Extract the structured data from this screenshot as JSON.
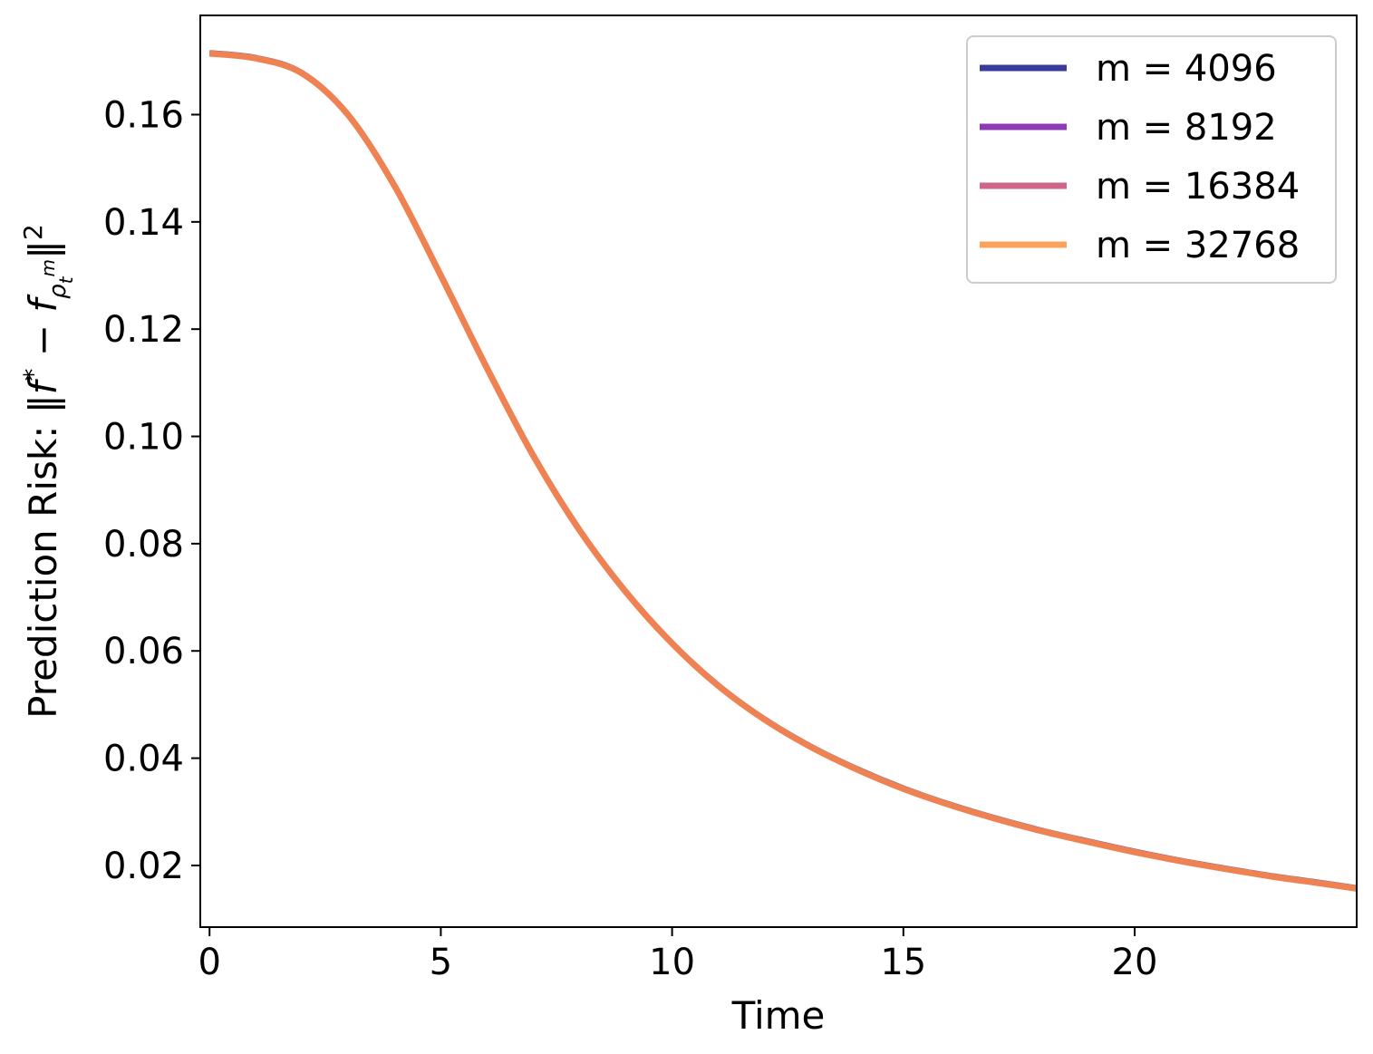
{
  "chart_data": {
    "type": "line",
    "title": "",
    "xlabel": "Time",
    "ylabel_text": "Prediction Risk: ‖f",
    "ylabel_full": "Prediction Risk: ‖f* − f_{ρ̂_t^m}‖²",
    "ylabel_parts": {
      "prefix": "Prediction Risk: ‖",
      "f": "f",
      "star": "*",
      "minus": " − ",
      "f2": "f",
      "sub_rho": "ρ",
      "sub_hat": "^",
      "sub_m": "m",
      "sub_t": "t",
      "bars": "‖",
      "sq": "2"
    },
    "xlim": [
      -0.2,
      24.8
    ],
    "ylim": [
      0.0085,
      0.1785
    ],
    "xticks": [
      0,
      5,
      10,
      15,
      20
    ],
    "xtick_labels": [
      "0",
      "5",
      "10",
      "15",
      "20"
    ],
    "yticks": [
      0.02,
      0.04,
      0.06,
      0.08,
      0.1,
      0.12,
      0.14,
      0.16
    ],
    "ytick_labels": [
      "0.02",
      "0.04",
      "0.06",
      "0.08",
      "0.10",
      "0.12",
      "0.14",
      "0.16"
    ],
    "grid": false,
    "legend_position": "top-right",
    "x": [
      0,
      1,
      2,
      3,
      4,
      5,
      6,
      7,
      8,
      9,
      10,
      11,
      12,
      13,
      14,
      15,
      16,
      17,
      18,
      19,
      20,
      21,
      22,
      23,
      24,
      24.8
    ],
    "series": [
      {
        "name": "m = 4096",
        "color": "#3a3a9e",
        "values": [
          0.1717,
          0.1708,
          0.168,
          0.1602,
          0.147,
          0.1303,
          0.113,
          0.0967,
          0.0828,
          0.0713,
          0.0617,
          0.0538,
          0.0475,
          0.0424,
          0.0382,
          0.0346,
          0.0316,
          0.029,
          0.0267,
          0.0247,
          0.0228,
          0.0211,
          0.0196,
          0.0182,
          0.017,
          0.016
        ]
      },
      {
        "name": "m = 8192",
        "color": "#8d3ab5",
        "values": [
          0.1716,
          0.1707,
          0.1679,
          0.1601,
          0.1469,
          0.1302,
          0.1129,
          0.0966,
          0.0827,
          0.0712,
          0.0616,
          0.0537,
          0.0474,
          0.0423,
          0.0381,
          0.0345,
          0.0315,
          0.0289,
          0.0266,
          0.0246,
          0.0227,
          0.021,
          0.0195,
          0.0181,
          0.0169,
          0.0159
        ]
      },
      {
        "name": "m = 16384",
        "color": "#d0658c",
        "values": [
          0.1715,
          0.1706,
          0.1678,
          0.16,
          0.1468,
          0.1301,
          0.1128,
          0.0965,
          0.0826,
          0.0711,
          0.0615,
          0.0536,
          0.0473,
          0.0422,
          0.038,
          0.0344,
          0.0314,
          0.0288,
          0.0265,
          0.0245,
          0.0226,
          0.0209,
          0.0194,
          0.018,
          0.0168,
          0.0158
        ]
      },
      {
        "name": "m = 32768",
        "color": "#fba35c",
        "values": [
          0.1714,
          0.1705,
          0.1677,
          0.1599,
          0.1467,
          0.13,
          0.1127,
          0.0964,
          0.0825,
          0.071,
          0.0614,
          0.0535,
          0.0472,
          0.0421,
          0.0379,
          0.0343,
          0.0313,
          0.0287,
          0.0264,
          0.0244,
          0.0225,
          0.0208,
          0.0193,
          0.0179,
          0.0167,
          0.0157
        ]
      }
    ],
    "overlay_color": "#ee8252"
  }
}
